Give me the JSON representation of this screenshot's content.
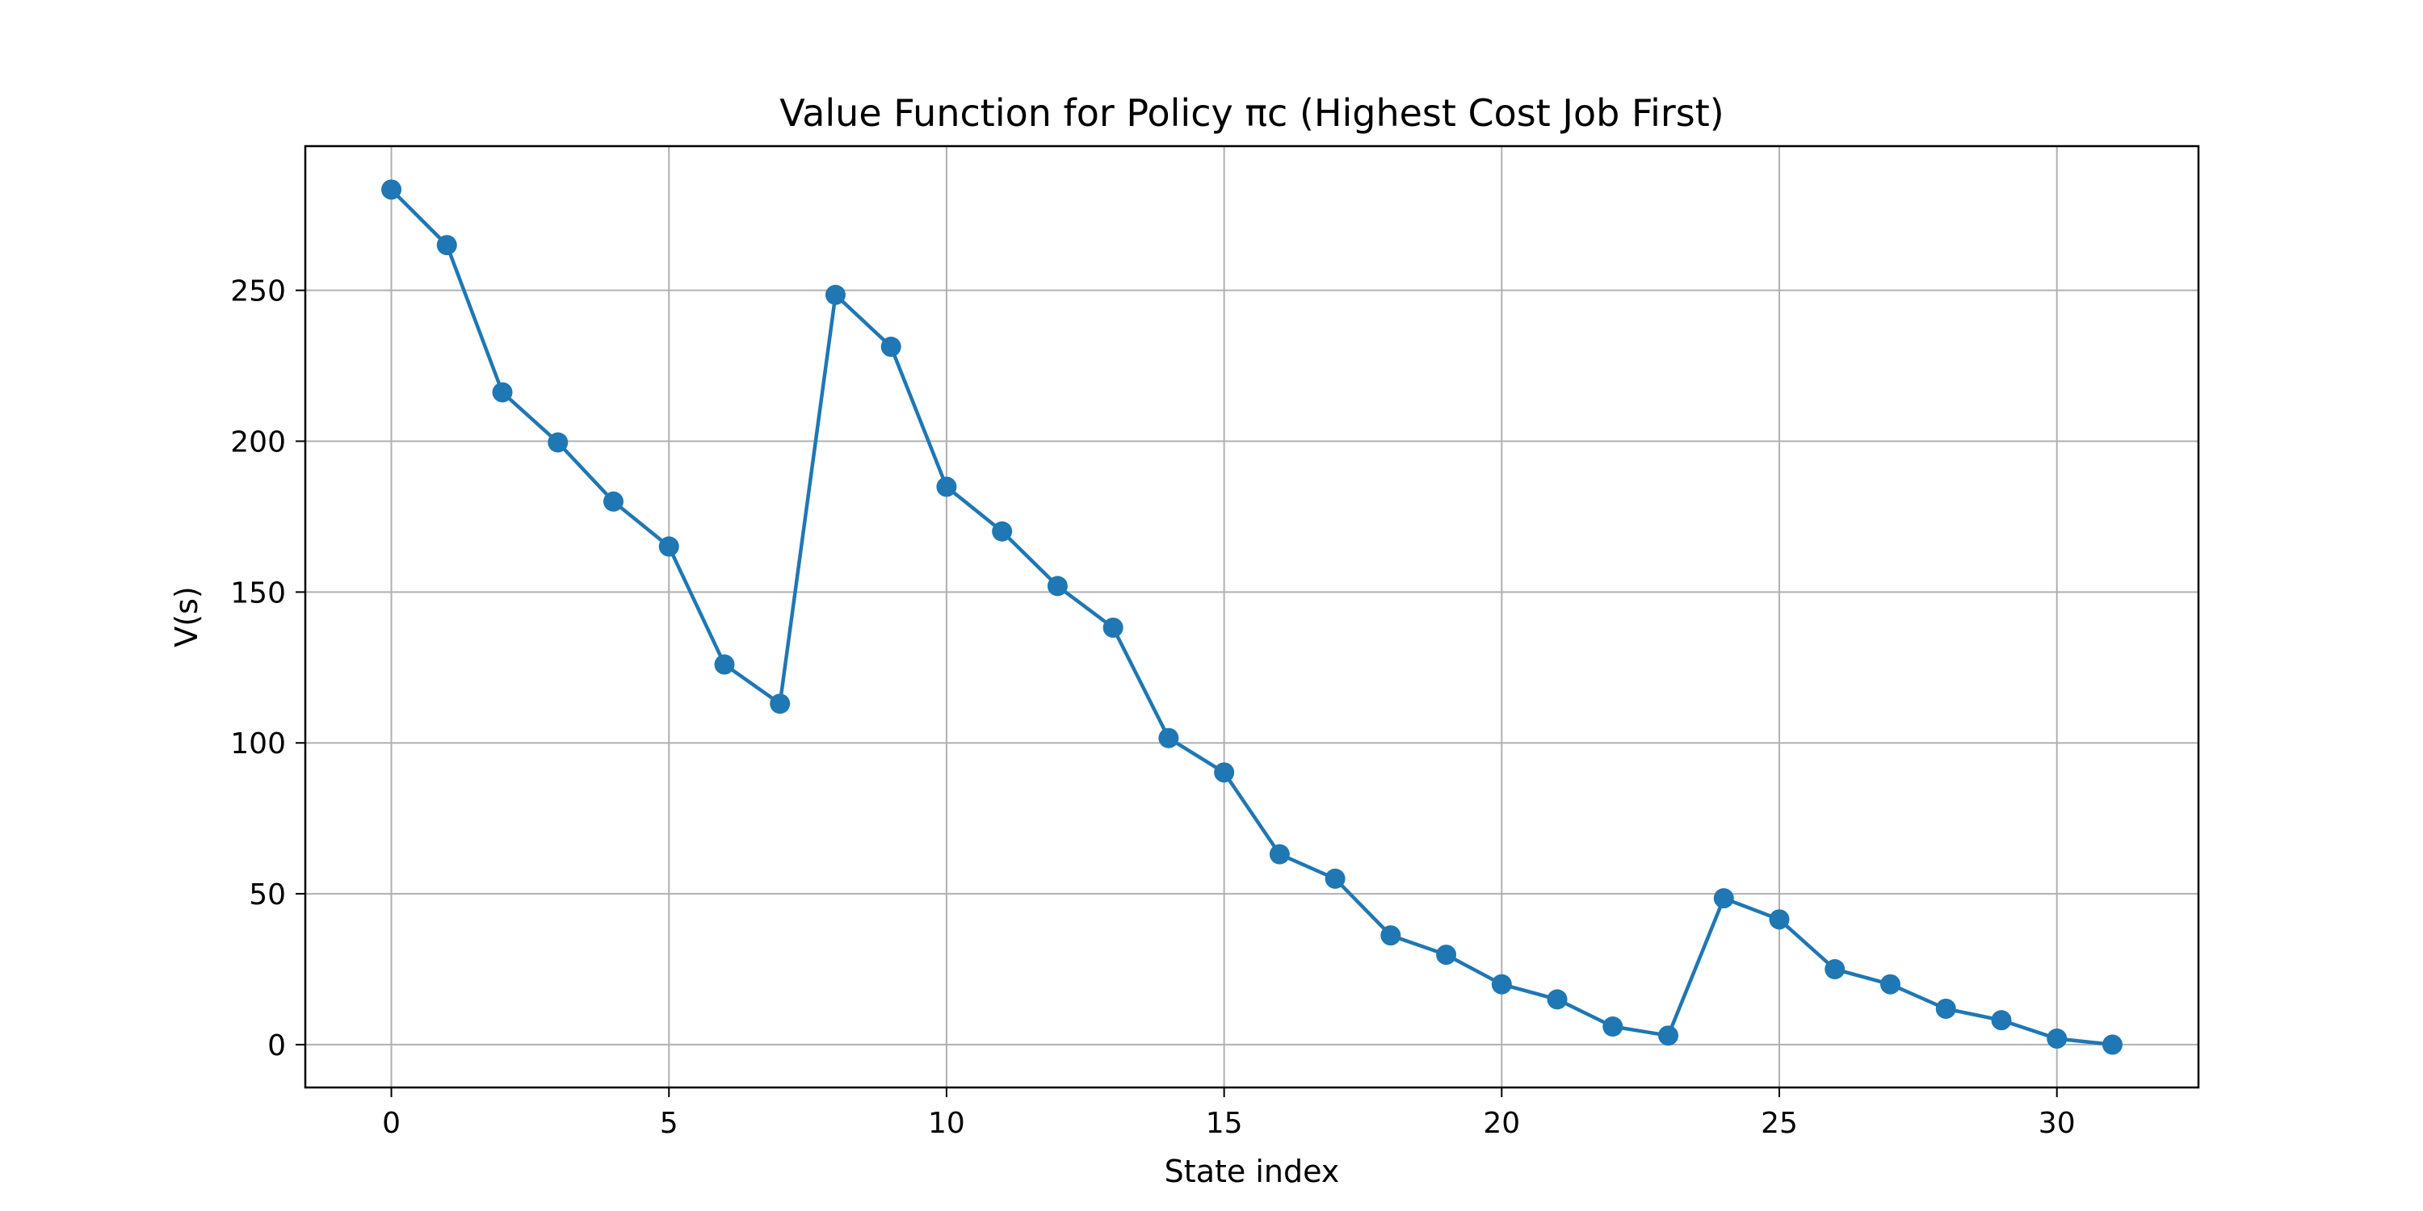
{
  "chart_data": {
    "type": "line",
    "title": "Value Function for Policy πc (Highest Cost Job First)",
    "xlabel": "State index",
    "ylabel": "V(s)",
    "xlim": [
      -1.55,
      32.55
    ],
    "ylim": [
      -14.2,
      297.8
    ],
    "xticks": [
      0,
      5,
      10,
      15,
      20,
      25,
      30
    ],
    "yticks": [
      0,
      50,
      100,
      150,
      200,
      250
    ],
    "grid": true,
    "series": [
      {
        "color": "#1f77b4",
        "marker": "circle",
        "x": [
          0,
          1,
          2,
          3,
          4,
          5,
          6,
          7,
          8,
          9,
          10,
          11,
          12,
          13,
          14,
          15,
          16,
          17,
          18,
          19,
          20,
          21,
          22,
          23,
          24,
          25,
          26,
          27,
          28,
          29,
          30,
          31
        ],
        "y": [
          283.4,
          265.0,
          216.2,
          199.6,
          180.0,
          165.1,
          126.0,
          113.0,
          248.5,
          231.3,
          184.9,
          170.1,
          152.0,
          138.2,
          101.6,
          90.2,
          63.1,
          55.0,
          36.2,
          29.8,
          20.0,
          15.0,
          6.0,
          3.0,
          48.5,
          41.5,
          25.0,
          20.0,
          11.9,
          8.1,
          2.0,
          0.0
        ]
      }
    ]
  }
}
